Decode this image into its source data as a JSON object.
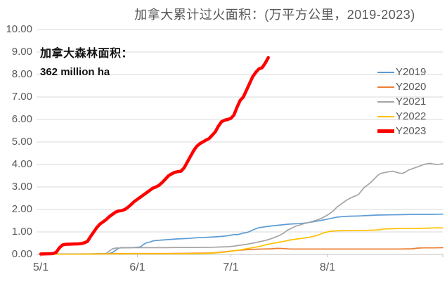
{
  "title": "加拿大累计过火面积：(万平方公里，2019-2023)",
  "annotation": {
    "line1": "加拿大森林面积：",
    "line2": "362 million ha"
  },
  "colors": {
    "title_text": "#595959",
    "axis_text": "#595959",
    "annotation_text": "#111111",
    "gridline": "#D9D9D9",
    "axis_line": "#C0C0C0",
    "background": "#FFFFFF"
  },
  "chart_data": {
    "type": "line",
    "title": "加拿大累计过火面积：(万平方公里，2019-2023)",
    "xlabel": "",
    "ylabel": "",
    "grid": "horizontal",
    "legend_position": "right",
    "x_axis": {
      "tick_labels": [
        "5/1",
        "6/1",
        "7/1",
        "8/1"
      ],
      "tick_days": [
        0,
        31,
        61,
        92
      ],
      "domain_days": [
        0,
        129
      ]
    },
    "y_axis": {
      "min": 0,
      "max": 10,
      "step": 1,
      "tick_labels": [
        "0.00",
        "1.00",
        "2.00",
        "3.00",
        "4.00",
        "5.00",
        "6.00",
        "7.00",
        "8.00",
        "9.00",
        "10.00"
      ]
    },
    "series": [
      {
        "name": "Y2019",
        "color": "#5B9BD5",
        "width": 1.7,
        "points": [
          [
            0,
            0.02
          ],
          [
            8,
            0.02
          ],
          [
            16,
            0.02
          ],
          [
            22,
            0.04
          ],
          [
            23,
            0.08
          ],
          [
            24,
            0.18
          ],
          [
            25,
            0.28
          ],
          [
            26,
            0.3
          ],
          [
            28,
            0.3
          ],
          [
            30,
            0.31
          ],
          [
            32,
            0.33
          ],
          [
            33,
            0.45
          ],
          [
            34,
            0.52
          ],
          [
            35,
            0.55
          ],
          [
            36,
            0.6
          ],
          [
            37,
            0.62
          ],
          [
            39,
            0.64
          ],
          [
            41,
            0.66
          ],
          [
            44,
            0.69
          ],
          [
            47,
            0.71
          ],
          [
            50,
            0.74
          ],
          [
            53,
            0.76
          ],
          [
            56,
            0.78
          ],
          [
            58,
            0.8
          ],
          [
            60,
            0.83
          ],
          [
            61,
            0.86
          ],
          [
            62,
            0.88
          ],
          [
            63,
            0.88
          ],
          [
            64,
            0.91
          ],
          [
            65,
            0.95
          ],
          [
            66,
            0.97
          ],
          [
            67,
            1.02
          ],
          [
            68,
            1.08
          ],
          [
            69,
            1.14
          ],
          [
            70,
            1.19
          ],
          [
            71,
            1.21
          ],
          [
            73,
            1.25
          ],
          [
            75,
            1.28
          ],
          [
            77,
            1.31
          ],
          [
            79,
            1.34
          ],
          [
            81,
            1.36
          ],
          [
            83,
            1.37
          ],
          [
            85,
            1.4
          ],
          [
            87,
            1.44
          ],
          [
            89,
            1.49
          ],
          [
            91,
            1.54
          ],
          [
            93,
            1.6
          ],
          [
            95,
            1.66
          ],
          [
            97,
            1.68
          ],
          [
            99,
            1.7
          ],
          [
            102,
            1.71
          ],
          [
            105,
            1.73
          ],
          [
            108,
            1.75
          ],
          [
            112,
            1.76
          ],
          [
            116,
            1.77
          ],
          [
            120,
            1.78
          ],
          [
            125,
            1.78
          ],
          [
            129,
            1.79
          ]
        ]
      },
      {
        "name": "Y2020",
        "color": "#ED7D31",
        "width": 1.7,
        "points": [
          [
            0,
            0.02
          ],
          [
            10,
            0.02
          ],
          [
            20,
            0.03
          ],
          [
            30,
            0.04
          ],
          [
            40,
            0.04
          ],
          [
            48,
            0.05
          ],
          [
            52,
            0.06
          ],
          [
            55,
            0.07
          ],
          [
            57,
            0.09
          ],
          [
            59,
            0.12
          ],
          [
            61,
            0.15
          ],
          [
            63,
            0.18
          ],
          [
            65,
            0.2
          ],
          [
            67,
            0.22
          ],
          [
            69,
            0.23
          ],
          [
            71,
            0.24
          ],
          [
            74,
            0.25
          ],
          [
            76,
            0.27
          ],
          [
            78,
            0.26
          ],
          [
            80,
            0.24
          ],
          [
            85,
            0.24
          ],
          [
            90,
            0.24
          ],
          [
            95,
            0.24
          ],
          [
            100,
            0.24
          ],
          [
            105,
            0.24
          ],
          [
            110,
            0.24
          ],
          [
            115,
            0.24
          ],
          [
            119,
            0.25
          ],
          [
            121,
            0.28
          ],
          [
            123,
            0.29
          ],
          [
            126,
            0.29
          ],
          [
            129,
            0.3
          ]
        ]
      },
      {
        "name": "Y2021",
        "color": "#A5A5A5",
        "width": 1.7,
        "points": [
          [
            0,
            0.02
          ],
          [
            10,
            0.02
          ],
          [
            18,
            0.02
          ],
          [
            21,
            0.04
          ],
          [
            22,
            0.15
          ],
          [
            23,
            0.25
          ],
          [
            24,
            0.28
          ],
          [
            26,
            0.29
          ],
          [
            30,
            0.3
          ],
          [
            35,
            0.3
          ],
          [
            40,
            0.3
          ],
          [
            45,
            0.31
          ],
          [
            50,
            0.31
          ],
          [
            55,
            0.32
          ],
          [
            58,
            0.33
          ],
          [
            60,
            0.34
          ],
          [
            62,
            0.37
          ],
          [
            64,
            0.41
          ],
          [
            66,
            0.45
          ],
          [
            68,
            0.5
          ],
          [
            70,
            0.56
          ],
          [
            72,
            0.62
          ],
          [
            74,
            0.7
          ],
          [
            76,
            0.81
          ],
          [
            78,
            0.95
          ],
          [
            79,
            1.07
          ],
          [
            80,
            1.13
          ],
          [
            81,
            1.2
          ],
          [
            82,
            1.27
          ],
          [
            83,
            1.3
          ],
          [
            84,
            1.35
          ],
          [
            86,
            1.42
          ],
          [
            88,
            1.5
          ],
          [
            90,
            1.6
          ],
          [
            92,
            1.75
          ],
          [
            93,
            1.85
          ],
          [
            94,
            1.95
          ],
          [
            95,
            2.1
          ],
          [
            96,
            2.2
          ],
          [
            97,
            2.3
          ],
          [
            98,
            2.4
          ],
          [
            99,
            2.48
          ],
          [
            100,
            2.55
          ],
          [
            101,
            2.6
          ],
          [
            102,
            2.67
          ],
          [
            103,
            2.85
          ],
          [
            104,
            3.0
          ],
          [
            105,
            3.1
          ],
          [
            106,
            3.22
          ],
          [
            107,
            3.35
          ],
          [
            108,
            3.5
          ],
          [
            109,
            3.6
          ],
          [
            110,
            3.63
          ],
          [
            111,
            3.66
          ],
          [
            112,
            3.68
          ],
          [
            113,
            3.7
          ],
          [
            114,
            3.66
          ],
          [
            115,
            3.62
          ],
          [
            116,
            3.6
          ],
          [
            117,
            3.66
          ],
          [
            118,
            3.75
          ],
          [
            119,
            3.8
          ],
          [
            120,
            3.85
          ],
          [
            121,
            3.9
          ],
          [
            122,
            3.95
          ],
          [
            123,
            4.0
          ],
          [
            124,
            4.03
          ],
          [
            125,
            4.05
          ],
          [
            126,
            4.02
          ],
          [
            127,
            4.0
          ],
          [
            128,
            4.01
          ],
          [
            129,
            4.03
          ]
        ]
      },
      {
        "name": "Y2022",
        "color": "#FFC000",
        "width": 1.7,
        "points": [
          [
            0,
            0.01
          ],
          [
            10,
            0.01
          ],
          [
            20,
            0.02
          ],
          [
            30,
            0.03
          ],
          [
            40,
            0.03
          ],
          [
            50,
            0.04
          ],
          [
            55,
            0.06
          ],
          [
            58,
            0.09
          ],
          [
            60,
            0.12
          ],
          [
            62,
            0.16
          ],
          [
            64,
            0.2
          ],
          [
            66,
            0.25
          ],
          [
            68,
            0.3
          ],
          [
            70,
            0.35
          ],
          [
            72,
            0.42
          ],
          [
            74,
            0.48
          ],
          [
            76,
            0.53
          ],
          [
            78,
            0.58
          ],
          [
            80,
            0.64
          ],
          [
            82,
            0.68
          ],
          [
            84,
            0.72
          ],
          [
            86,
            0.76
          ],
          [
            88,
            0.82
          ],
          [
            89,
            0.86
          ],
          [
            90,
            0.92
          ],
          [
            91,
            0.97
          ],
          [
            92,
            1.0
          ],
          [
            93,
            1.03
          ],
          [
            95,
            1.05
          ],
          [
            98,
            1.06
          ],
          [
            101,
            1.07
          ],
          [
            104,
            1.07
          ],
          [
            107,
            1.08
          ],
          [
            109,
            1.1
          ],
          [
            110,
            1.13
          ],
          [
            112,
            1.14
          ],
          [
            115,
            1.15
          ],
          [
            118,
            1.15
          ],
          [
            121,
            1.16
          ],
          [
            124,
            1.17
          ],
          [
            127,
            1.18
          ],
          [
            129,
            1.18
          ]
        ]
      },
      {
        "name": "Y2023",
        "color": "#FF0000",
        "width": 4.5,
        "points": [
          [
            0,
            0.02
          ],
          [
            3,
            0.03
          ],
          [
            4,
            0.04
          ],
          [
            5,
            0.1
          ],
          [
            6,
            0.3
          ],
          [
            7,
            0.42
          ],
          [
            8,
            0.45
          ],
          [
            10,
            0.46
          ],
          [
            12,
            0.47
          ],
          [
            13,
            0.48
          ],
          [
            14,
            0.52
          ],
          [
            15,
            0.58
          ],
          [
            16,
            0.8
          ],
          [
            17,
            1.0
          ],
          [
            18,
            1.2
          ],
          [
            19,
            1.35
          ],
          [
            20,
            1.45
          ],
          [
            21,
            1.55
          ],
          [
            22,
            1.68
          ],
          [
            23,
            1.78
          ],
          [
            24,
            1.88
          ],
          [
            25,
            1.93
          ],
          [
            26,
            1.95
          ],
          [
            27,
            2.0
          ],
          [
            28,
            2.1
          ],
          [
            29,
            2.22
          ],
          [
            30,
            2.35
          ],
          [
            31,
            2.45
          ],
          [
            32,
            2.55
          ],
          [
            33,
            2.65
          ],
          [
            34,
            2.75
          ],
          [
            35,
            2.85
          ],
          [
            36,
            2.95
          ],
          [
            37,
            3.0
          ],
          [
            38,
            3.08
          ],
          [
            39,
            3.2
          ],
          [
            40,
            3.35
          ],
          [
            41,
            3.5
          ],
          [
            42,
            3.58
          ],
          [
            43,
            3.65
          ],
          [
            44,
            3.68
          ],
          [
            45,
            3.7
          ],
          [
            46,
            3.85
          ],
          [
            47,
            4.1
          ],
          [
            48,
            4.35
          ],
          [
            49,
            4.6
          ],
          [
            50,
            4.8
          ],
          [
            51,
            4.92
          ],
          [
            52,
            5.0
          ],
          [
            53,
            5.08
          ],
          [
            54,
            5.15
          ],
          [
            55,
            5.3
          ],
          [
            56,
            5.45
          ],
          [
            57,
            5.7
          ],
          [
            58,
            5.9
          ],
          [
            59,
            5.97
          ],
          [
            60,
            6.0
          ],
          [
            61,
            6.05
          ],
          [
            62,
            6.2
          ],
          [
            63,
            6.55
          ],
          [
            64,
            6.85
          ],
          [
            65,
            7.0
          ],
          [
            66,
            7.3
          ],
          [
            67,
            7.6
          ],
          [
            68,
            7.9
          ],
          [
            69,
            8.1
          ],
          [
            70,
            8.25
          ],
          [
            71,
            8.3
          ],
          [
            72,
            8.5
          ],
          [
            73,
            8.75
          ]
        ]
      }
    ]
  }
}
